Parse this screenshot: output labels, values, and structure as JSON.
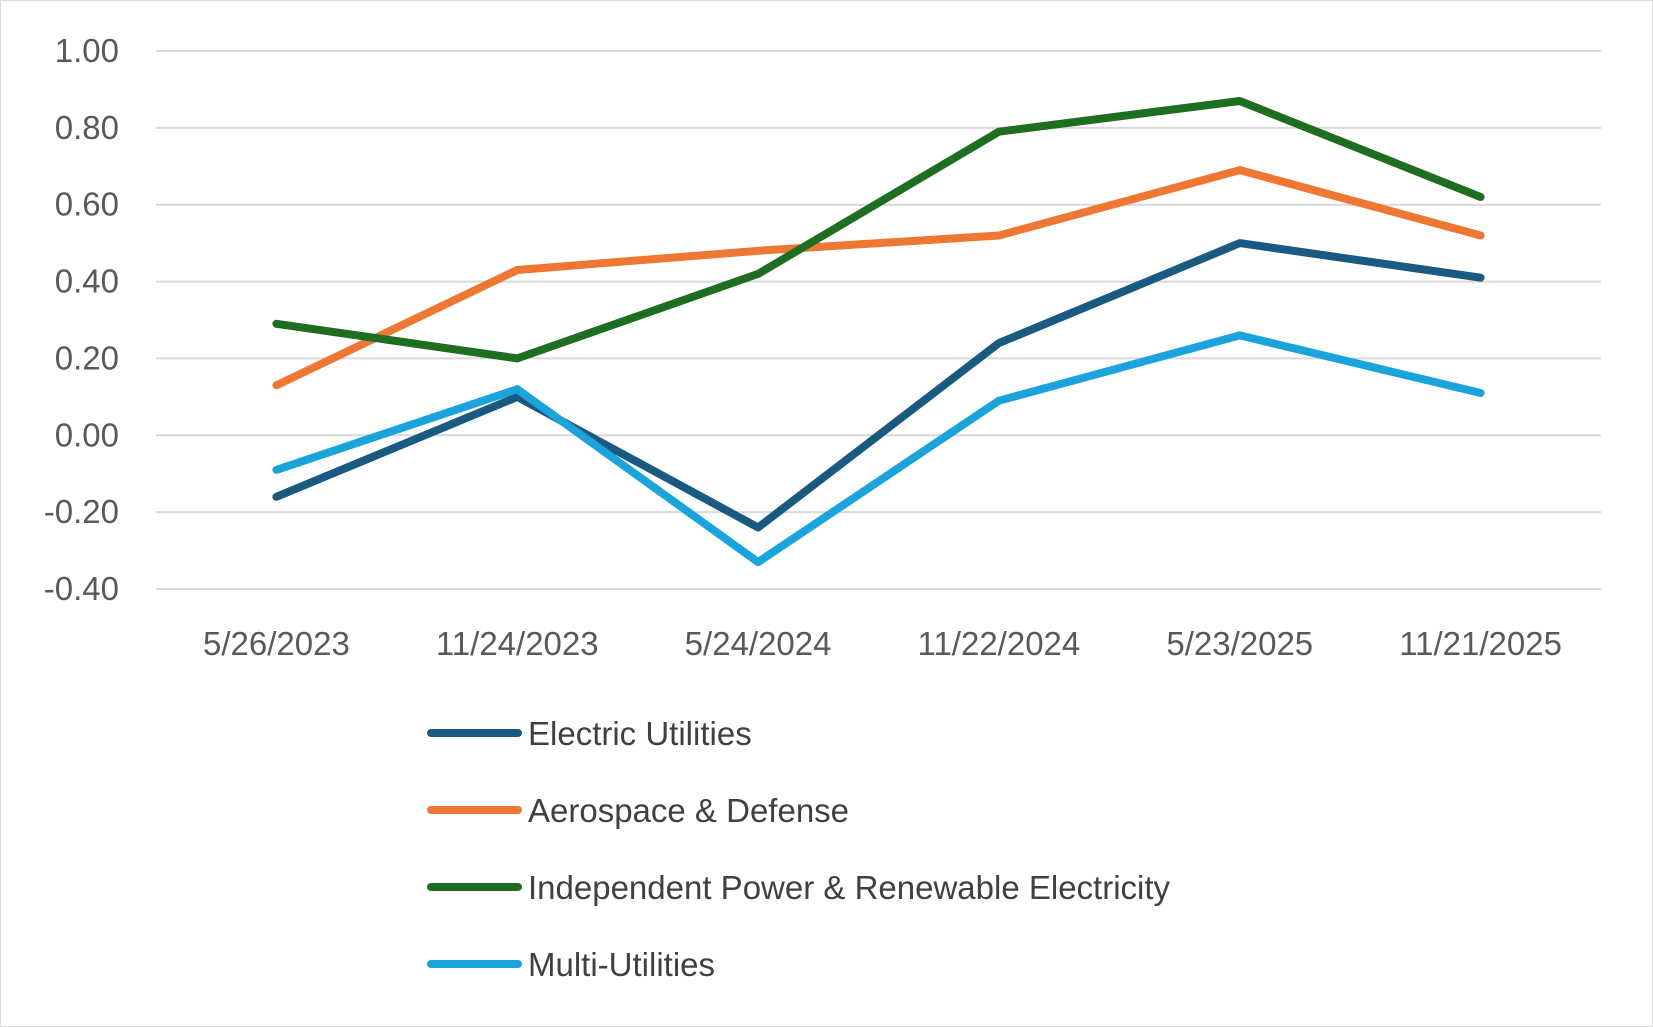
{
  "chart_data": {
    "type": "line",
    "title": "",
    "xlabel": "",
    "ylabel": "",
    "categories": [
      "5/26/2023",
      "11/24/2023",
      "5/24/2024",
      "11/22/2024",
      "5/23/2025",
      "11/21/2025"
    ],
    "ylim": [
      -0.4,
      1.0
    ],
    "yticks": [
      "1.00",
      "0.80",
      "0.60",
      "0.40",
      "0.20",
      "0.00",
      "-0.20",
      "-0.40"
    ],
    "ytick_values": [
      1.0,
      0.8,
      0.6,
      0.4,
      0.2,
      0.0,
      -0.2,
      -0.4
    ],
    "grid": true,
    "legend_position": "bottom",
    "series": [
      {
        "name": "Electric Utilities",
        "color": "#1a5a80",
        "values": [
          -0.16,
          0.1,
          -0.24,
          0.24,
          0.5,
          0.41
        ]
      },
      {
        "name": "Aerospace & Defense",
        "color": "#ee7733",
        "values": [
          0.13,
          0.43,
          0.48,
          0.52,
          0.69,
          0.52
        ]
      },
      {
        "name": "Independent Power & Renewable Electricity",
        "color": "#1e6e21",
        "values": [
          0.29,
          0.2,
          0.42,
          0.79,
          0.87,
          0.62
        ]
      },
      {
        "name": "Multi-Utilities",
        "color": "#1ba3dc",
        "values": [
          -0.09,
          0.12,
          -0.33,
          0.09,
          0.26,
          0.11
        ]
      }
    ]
  }
}
